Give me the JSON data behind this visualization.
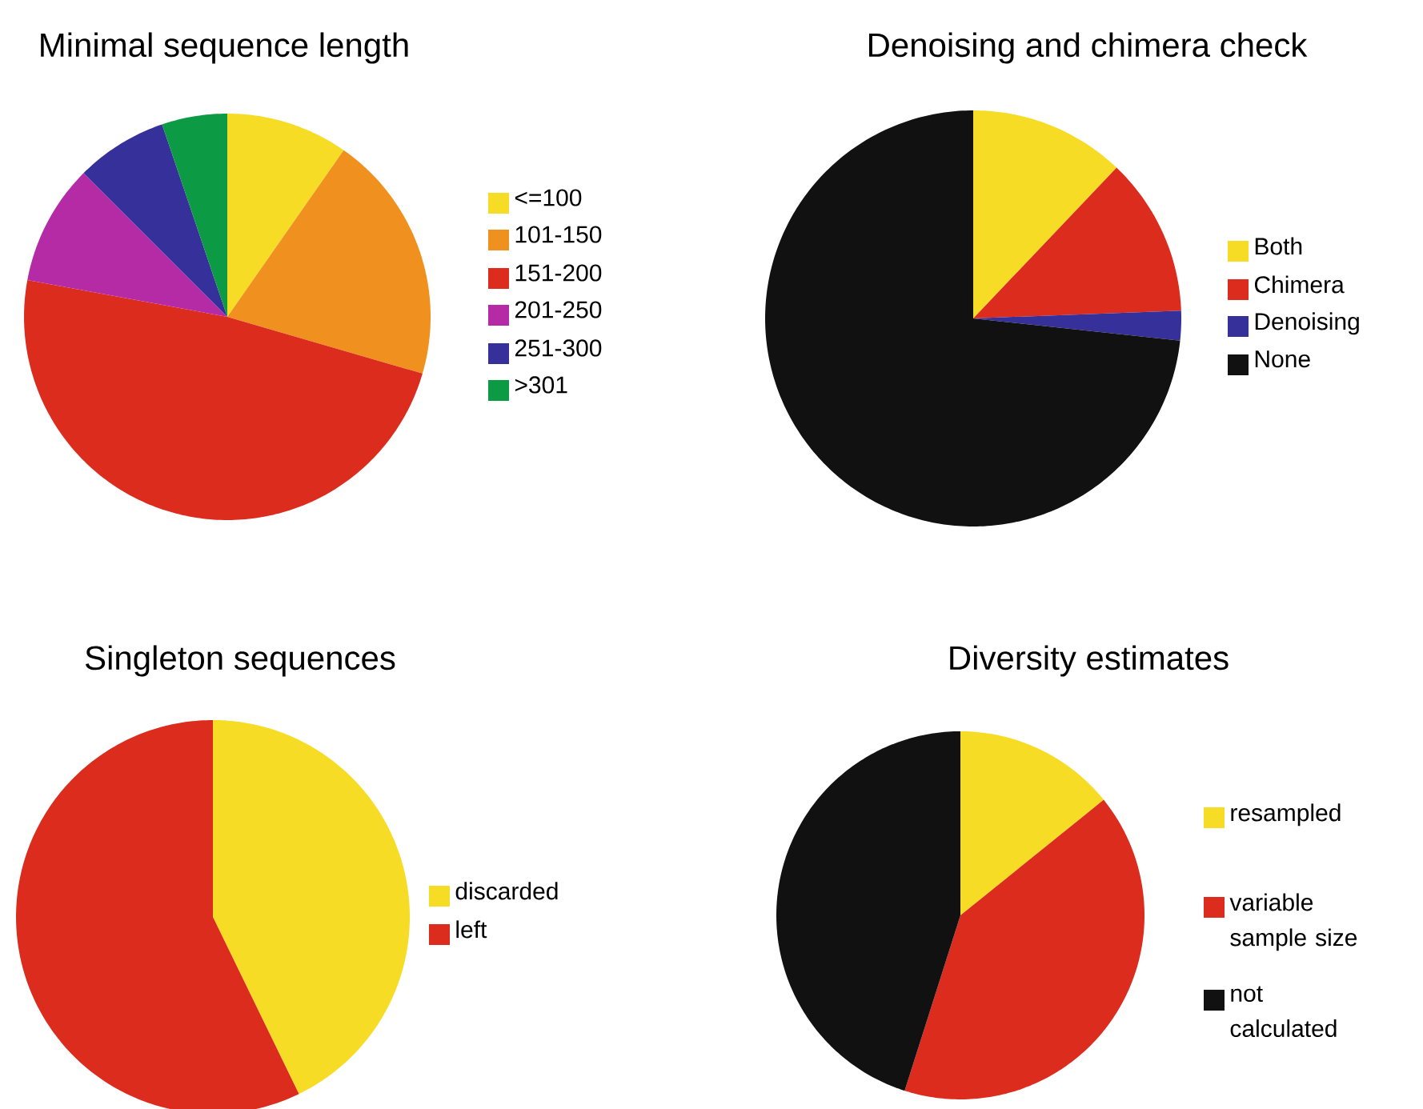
{
  "chart_data": [
    {
      "type": "pie",
      "title": "Minimal sequence length",
      "categories": [
        "<=100",
        "101-150",
        "151-200",
        "201-250",
        "251-300",
        ">301"
      ],
      "values": [
        9.7,
        19.8,
        48.4,
        9.6,
        7.3,
        5.2
      ],
      "colors": [
        "#f7dc26",
        "#f0901e",
        "#dc2c1e",
        "#b52ba6",
        "#35309a",
        "#0c9a45"
      ],
      "legend": "right"
    },
    {
      "type": "pie",
      "title": "Denoising and chimera check",
      "categories": [
        "Both",
        "Chimera",
        "Denoising",
        "None"
      ],
      "values": [
        12.1,
        12.3,
        2.3,
        73.3
      ],
      "colors": [
        "#f7dc26",
        "#dc2c1e",
        "#35309a",
        "#111111"
      ],
      "legend": "right"
    },
    {
      "type": "pie",
      "title": "Singleton sequences",
      "categories": [
        "discarded",
        "left"
      ],
      "values": [
        42.8,
        57.2
      ],
      "colors": [
        "#f7dc26",
        "#dc2c1e"
      ],
      "legend": "right"
    },
    {
      "type": "pie",
      "title": "Diversity estimates",
      "categories": [
        "resampled",
        "variable sample size",
        "not calculated"
      ],
      "values": [
        14.2,
        40.7,
        45.1
      ],
      "colors": [
        "#f7dc26",
        "#dc2c1e",
        "#111111"
      ],
      "legend": "right"
    }
  ]
}
